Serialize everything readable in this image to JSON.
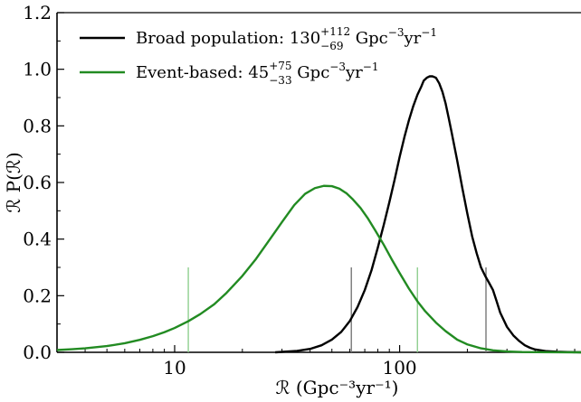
{
  "chart_data": {
    "type": "line",
    "xscale": "log",
    "xlim": [
      3,
      640
    ],
    "ylim": [
      0.0,
      1.2
    ],
    "xlabel": "ℛ (Gpc⁻³yr⁻¹)",
    "ylabel": "ℛ P(ℛ)",
    "xticks": [
      10,
      100
    ],
    "xtick_labels": [
      "10",
      "100"
    ],
    "yticks": [
      0.0,
      0.2,
      0.4,
      0.6,
      0.8,
      1.0,
      1.2
    ],
    "ytick_labels": [
      "0.0",
      "0.2",
      "0.4",
      "0.6",
      "0.8",
      "1.0",
      "1.2"
    ],
    "legend_position": "top-left",
    "series": [
      {
        "name": "Broad population",
        "legend_label": {
          "prefix": "Broad population: 130",
          "sup": "+112",
          "sub": "−69",
          "units_base": " Gpc",
          "units_sup": "−3",
          "units_tail": "yr",
          "units_tail_sup": "−1"
        },
        "color": "#000000",
        "x": [
          28,
          35,
          40,
          45,
          50,
          55,
          60,
          65,
          70,
          75,
          80,
          85,
          90,
          95,
          100,
          105,
          110,
          115,
          120,
          125,
          128,
          132,
          136,
          140,
          145,
          150,
          155,
          160,
          165,
          170,
          180,
          190,
          200,
          210,
          220,
          230,
          240,
          250,
          260,
          270,
          280,
          300,
          320,
          340,
          360,
          380,
          400,
          450,
          500,
          560,
          640
        ],
        "y": [
          0.0,
          0.005,
          0.012,
          0.025,
          0.045,
          0.072,
          0.11,
          0.16,
          0.22,
          0.29,
          0.37,
          0.45,
          0.53,
          0.61,
          0.69,
          0.76,
          0.82,
          0.87,
          0.91,
          0.94,
          0.96,
          0.97,
          0.975,
          0.975,
          0.97,
          0.95,
          0.92,
          0.88,
          0.83,
          0.78,
          0.68,
          0.58,
          0.49,
          0.41,
          0.35,
          0.3,
          0.27,
          0.245,
          0.22,
          0.18,
          0.14,
          0.09,
          0.06,
          0.04,
          0.025,
          0.016,
          0.01,
          0.004,
          0.002,
          0.001,
          0.0
        ]
      },
      {
        "name": "Event-based",
        "legend_label": {
          "prefix": "Event-based: 45",
          "sup": "+75",
          "sub": "−33",
          "units_base": " Gpc",
          "units_sup": "−3",
          "units_tail": "yr",
          "units_tail_sup": "−1"
        },
        "color": "#228B22",
        "x": [
          3,
          3.5,
          4,
          5,
          6,
          7,
          8,
          9,
          10,
          11.5,
          13,
          15,
          17,
          20,
          23,
          26,
          30,
          34,
          38,
          42,
          46,
          50,
          54,
          58,
          62,
          67,
          72,
          78,
          85,
          92,
          100,
          110,
          120,
          130,
          145,
          160,
          180,
          200,
          230,
          260,
          300,
          350,
          400,
          500,
          640
        ],
        "y": [
          0.008,
          0.011,
          0.014,
          0.022,
          0.032,
          0.044,
          0.057,
          0.071,
          0.086,
          0.11,
          0.135,
          0.17,
          0.21,
          0.27,
          0.33,
          0.39,
          0.46,
          0.52,
          0.56,
          0.58,
          0.588,
          0.587,
          0.578,
          0.562,
          0.54,
          0.51,
          0.475,
          0.43,
          0.38,
          0.33,
          0.28,
          0.225,
          0.18,
          0.145,
          0.105,
          0.075,
          0.045,
          0.028,
          0.014,
          0.007,
          0.003,
          0.001,
          0.0005,
          0.0001,
          0.0
        ]
      }
    ],
    "vertical_lines": [
      {
        "x": 11.5,
        "y_top": 0.3,
        "color": "#8fcf8f"
      },
      {
        "x": 120,
        "y_top": 0.3,
        "color": "#8fcf8f"
      },
      {
        "x": 61,
        "y_top": 0.3,
        "color": "#777777"
      },
      {
        "x": 242,
        "y_top": 0.3,
        "color": "#777777"
      }
    ]
  }
}
